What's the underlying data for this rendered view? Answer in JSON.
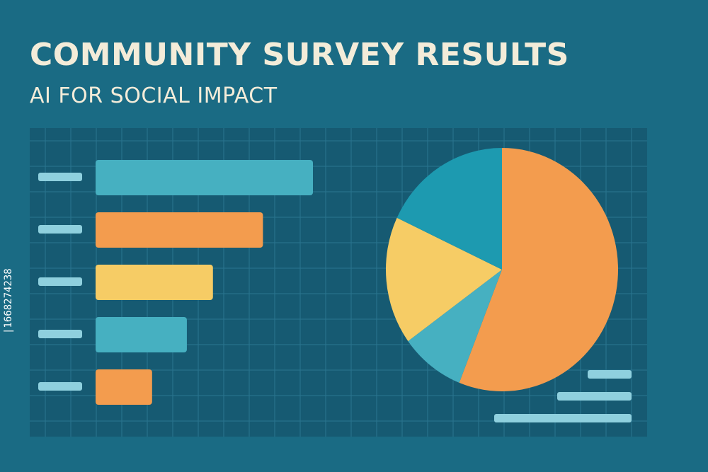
{
  "title": "COMMUNITY SURVEY RESULTS",
  "subtitle": "AI FOR SOCIAL IMPACT",
  "side_code": "|1668274238",
  "colors": {
    "background": "#1a6b84",
    "panel": "#165a72",
    "grid": "#2a7590",
    "text_light": "#f3ecd9",
    "placeholder": "#8fd0de",
    "teal_light": "#46b0c1",
    "teal_dark": "#1d9ab0",
    "orange": "#f39c4e",
    "yellow": "#f6cc65"
  },
  "chart_data": [
    {
      "type": "bar",
      "orientation": "horizontal",
      "categories": [
        "",
        "",
        "",
        "",
        ""
      ],
      "values": [
        100,
        77,
        54,
        42,
        26
      ],
      "colors": [
        "#46b0c1",
        "#f39c4e",
        "#f6cc65",
        "#46b0c1",
        "#f39c4e"
      ],
      "xlim": [
        0,
        100
      ],
      "grid": true
    },
    {
      "type": "pie",
      "values": [
        56,
        9,
        17,
        18
      ],
      "colors": [
        "#f39c4e",
        "#46b0c1",
        "#f6cc65",
        "#1d9ab0"
      ],
      "legend": "bottom-right"
    }
  ]
}
